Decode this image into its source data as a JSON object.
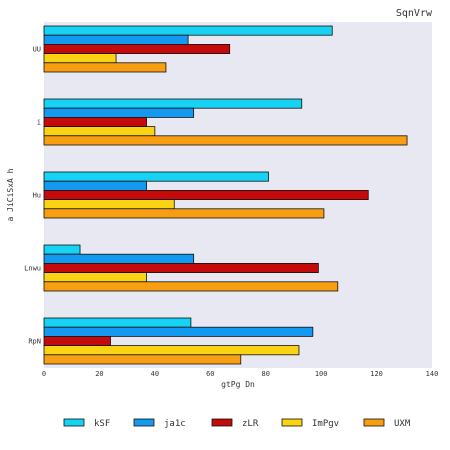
{
  "chart_data": {
    "type": "bar",
    "orientation": "horizontal",
    "title": "SqnVrw",
    "xlabel": "gtPg Dn",
    "ylabel": "a JiCiSxA h",
    "xlim": [
      0,
      140
    ],
    "xticks": [
      0,
      20,
      40,
      60,
      80,
      100,
      120,
      140
    ],
    "grid": false,
    "legend_position": "bottom",
    "categories": [
      "UU",
      "i",
      "Hu",
      "Lnwu",
      "RpN"
    ],
    "series": [
      {
        "name": "kSF",
        "color": "#17d3f3",
        "values": [
          104,
          93,
          81,
          13,
          53
        ]
      },
      {
        "name": "ja1c",
        "color": "#1499f0",
        "values": [
          52,
          54,
          37,
          54,
          97
        ]
      },
      {
        "name": "zLR",
        "color": "#c40a0a",
        "values": [
          67,
          37,
          117,
          99,
          24
        ]
      },
      {
        "name": "ImPgv",
        "color": "#fad414",
        "values": [
          26,
          40,
          47,
          37,
          92
        ]
      },
      {
        "name": "UXM",
        "color": "#f89e12",
        "values": [
          44,
          131,
          101,
          106,
          71
        ]
      }
    ]
  }
}
